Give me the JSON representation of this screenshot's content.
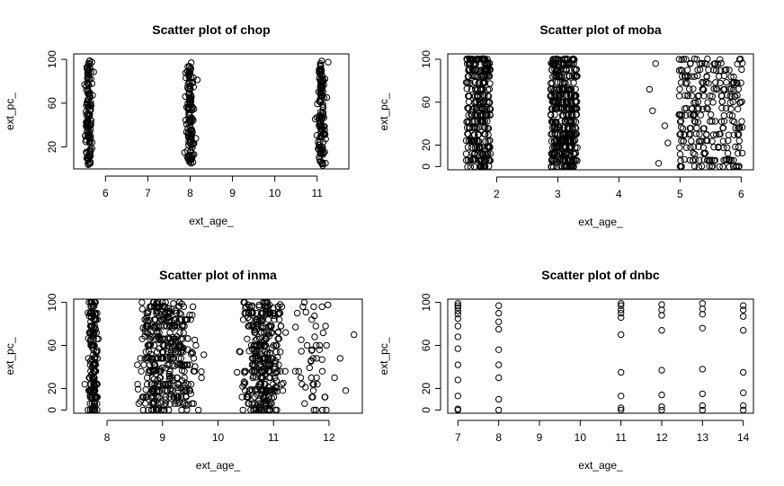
{
  "chart_data": [
    {
      "type": "scatter",
      "title": "Scatter plot of chop",
      "xlabel": "ext_age_",
      "ylabel": "ext_pc_",
      "xlim": [
        5.25,
        11.75
      ],
      "ylim": [
        0,
        105
      ],
      "xticks": [
        6,
        7,
        8,
        9,
        10,
        11
      ],
      "yticks": [
        20,
        60,
        100
      ],
      "jitter_x": 0.12,
      "groups": [
        {
          "x": 5.6,
          "n": 130,
          "ymin": 3,
          "ymax": 99
        },
        {
          "x": 8.0,
          "n": 130,
          "ymin": 5,
          "ymax": 99
        },
        {
          "x": 11.1,
          "n": 130,
          "ymin": 3,
          "ymax": 99
        }
      ]
    },
    {
      "type": "scatter",
      "title": "Scatter plot of moba",
      "xlabel": "ext_age_",
      "ylabel": "ext_pc_",
      "xlim": [
        1.2,
        6.2
      ],
      "ylim": [
        -3,
        105
      ],
      "xticks": [
        2,
        3,
        4,
        5,
        6
      ],
      "yticks": [
        0,
        20,
        60,
        100
      ],
      "y_levels": [
        0,
        6,
        12,
        18,
        24,
        30,
        36,
        42,
        48,
        54,
        60,
        66,
        72,
        78,
        84,
        90,
        96,
        100
      ],
      "groups": [
        {
          "x": 1.7,
          "spread": 0.2,
          "n": 300
        },
        {
          "x": 3.1,
          "spread": 0.22,
          "n": 400
        },
        {
          "x": 5.5,
          "spread": 0.52,
          "n": 260
        }
      ],
      "extra_points": [
        [
          4.5,
          72
        ],
        [
          4.55,
          52
        ],
        [
          4.6,
          96
        ],
        [
          4.65,
          3
        ],
        [
          4.75,
          38
        ],
        [
          4.8,
          22
        ]
      ]
    },
    {
      "type": "scatter",
      "title": "Scatter plot of inma",
      "xlabel": "ext_age_",
      "ylabel": "ext_pc_",
      "xlim": [
        7.4,
        12.6
      ],
      "ylim": [
        -3,
        103
      ],
      "xticks": [
        8,
        9,
        10,
        11,
        12
      ],
      "yticks": [
        0,
        20,
        60,
        100
      ],
      "y_levels": [
        0,
        6,
        12,
        18,
        24,
        30,
        36,
        42,
        48,
        54,
        60,
        66,
        72,
        78,
        84,
        90,
        96,
        100
      ],
      "clusters": [
        {
          "x": 7.75,
          "spread": 0.12,
          "n": 170
        },
        {
          "x": 8.9,
          "spread": 0.45,
          "n": 230
        },
        {
          "x": 9.3,
          "spread": 0.5,
          "n": 170
        },
        {
          "x": 10.8,
          "spread": 0.55,
          "n": 320
        },
        {
          "x": 11.7,
          "spread": 0.45,
          "n": 50
        }
      ],
      "extra_points": [
        [
          7.6,
          24
        ],
        [
          12.3,
          18
        ],
        [
          12.45,
          70
        ],
        [
          12.2,
          48
        ],
        [
          12.1,
          30
        ]
      ]
    },
    {
      "type": "scatter",
      "title": "Scatter plot of dnbc",
      "xlabel": "ext_age_",
      "ylabel": "ext_pc_",
      "xlim": [
        6.75,
        14.25
      ],
      "ylim": [
        -3,
        103
      ],
      "xticks": [
        7,
        8,
        9,
        10,
        11,
        12,
        13,
        14
      ],
      "yticks": [
        0,
        20,
        60,
        100
      ],
      "points": [
        [
          7,
          0
        ],
        [
          7,
          1
        ],
        [
          7,
          13
        ],
        [
          7,
          28
        ],
        [
          7,
          42
        ],
        [
          7,
          57
        ],
        [
          7,
          68
        ],
        [
          7,
          78
        ],
        [
          7,
          85
        ],
        [
          7,
          89
        ],
        [
          7,
          92
        ],
        [
          7,
          95
        ],
        [
          7,
          97
        ],
        [
          7,
          99
        ],
        [
          8,
          0
        ],
        [
          8,
          10
        ],
        [
          8,
          30
        ],
        [
          8,
          42
        ],
        [
          8,
          56
        ],
        [
          8,
          75
        ],
        [
          8,
          82
        ],
        [
          8,
          90
        ],
        [
          8,
          97
        ],
        [
          11,
          0
        ],
        [
          11,
          2
        ],
        [
          11,
          13
        ],
        [
          11,
          35
        ],
        [
          11,
          70
        ],
        [
          11,
          86
        ],
        [
          11,
          90
        ],
        [
          11,
          93
        ],
        [
          11,
          97
        ],
        [
          11,
          99
        ],
        [
          12,
          0
        ],
        [
          12,
          3
        ],
        [
          12,
          14
        ],
        [
          12,
          37
        ],
        [
          12,
          74
        ],
        [
          12,
          88
        ],
        [
          12,
          93
        ],
        [
          12,
          98
        ],
        [
          13,
          0
        ],
        [
          13,
          4
        ],
        [
          13,
          15
        ],
        [
          13,
          38
        ],
        [
          13,
          76
        ],
        [
          13,
          89
        ],
        [
          13,
          94
        ],
        [
          13,
          99
        ],
        [
          14,
          0
        ],
        [
          14,
          4
        ],
        [
          14,
          16
        ],
        [
          14,
          35
        ],
        [
          14,
          74
        ],
        [
          14,
          87
        ],
        [
          14,
          93
        ],
        [
          14,
          97
        ]
      ]
    }
  ]
}
